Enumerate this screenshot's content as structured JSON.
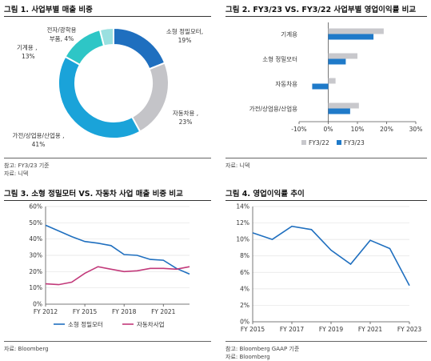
{
  "figures": [
    {
      "title": "그림 1. 사업부별 매출 비중",
      "sources": [
        "참고: FY3/23 기준",
        "자료: 니덱"
      ]
    },
    {
      "title": "그림 2. FY3/23 VS. FY3/22 사업부별 영업이익률 비교",
      "sources": [
        "자료: 니덱"
      ]
    },
    {
      "title": "그림 3. 소형 정밀모터 VS. 자동차 사업 매출 비중 비교",
      "sources": [
        "자료: Bloomberg"
      ]
    },
    {
      "title": "그림 4. 영업이익률 추이",
      "sources": [
        "참고: Bloomberg GAAP 기준",
        "자료: Bloomberg"
      ]
    }
  ],
  "chart_data": [
    {
      "type": "pie",
      "donut": true,
      "slices": [
        {
          "label": "소형 정밀모터,",
          "pct_label": "19%",
          "value": 19,
          "color": "#1f6fbf"
        },
        {
          "label": "자동차용 ,",
          "pct_label": "23%",
          "value": 23,
          "color": "#c4c4c8"
        },
        {
          "label": "가전/상업용/산업용 ,",
          "pct_label": "41%",
          "value": 41,
          "color": "#1aa3d9"
        },
        {
          "label": "기계용 ,",
          "pct_label": "13%",
          "value": 13,
          "color": "#2ec6c6"
        },
        {
          "label": "전자/광학용 부품, 4%",
          "pct_label": "",
          "value": 4,
          "color": "#9ae0e0"
        }
      ]
    },
    {
      "type": "bar",
      "orientation": "horizontal",
      "categories": [
        "기계용",
        "소형 정밀모터",
        "자동차용",
        "가전/상업용/산업용"
      ],
      "series": [
        {
          "name": "FY3/22",
          "values": [
            19,
            10,
            2.5,
            10.5
          ],
          "color": "#c8c8cc"
        },
        {
          "name": "FY3/23",
          "values": [
            15.5,
            6,
            -5.5,
            7.5
          ],
          "color": "#1f7ac9"
        }
      ],
      "xlim": [
        -10,
        30
      ],
      "xticks": [
        "-10%",
        "0%",
        "10%",
        "20%",
        "30%"
      ],
      "xtick_values": [
        -10,
        0,
        10,
        20,
        30
      ],
      "legend": "bottom-center"
    },
    {
      "type": "line",
      "x": [
        2012,
        2013,
        2014,
        2015,
        2016,
        2017,
        2018,
        2019,
        2020,
        2021,
        2022,
        2023
      ],
      "series": [
        {
          "name": "소형 정밀모터",
          "values": [
            48.5,
            45,
            41.5,
            38.5,
            37.5,
            36,
            30.5,
            30,
            27.5,
            27,
            22,
            18.5
          ],
          "color": "#1f6fbf"
        },
        {
          "name": "자동차사업",
          "values": [
            12.5,
            12,
            13.5,
            19,
            23,
            21.5,
            20,
            20.5,
            22,
            22,
            21.5,
            23
          ],
          "color": "#c2397a"
        }
      ],
      "ylim": [
        0,
        60
      ],
      "yticks": [
        "0%",
        "10%",
        "20%",
        "30%",
        "40%",
        "50%",
        "60%"
      ],
      "ytick_values": [
        0,
        10,
        20,
        30,
        40,
        50,
        60
      ],
      "xticks": [
        "FY 2012",
        "FY 2015",
        "FY 2018",
        "FY 2021"
      ],
      "xtick_values": [
        2012,
        2015,
        2018,
        2021
      ],
      "legend": "bottom-center"
    },
    {
      "type": "line",
      "x": [
        2015,
        2016,
        2017,
        2018,
        2019,
        2020,
        2021,
        2022,
        2023
      ],
      "series": [
        {
          "name": "",
          "values": [
            10.8,
            10,
            11.6,
            11.2,
            8.7,
            7,
            9.9,
            8.9,
            4.4
          ],
          "color": "#1f6fbf"
        }
      ],
      "ylim": [
        0,
        14
      ],
      "yticks": [
        "0%",
        "2%",
        "4%",
        "6%",
        "8%",
        "10%",
        "12%",
        "14%"
      ],
      "ytick_values": [
        0,
        2,
        4,
        6,
        8,
        10,
        12,
        14
      ],
      "xticks": [
        "FY 2015",
        "FY 2017",
        "FY 2019",
        "FY 2021",
        "FY 2023"
      ],
      "xtick_values": [
        2015,
        2017,
        2019,
        2021,
        2023
      ]
    }
  ]
}
